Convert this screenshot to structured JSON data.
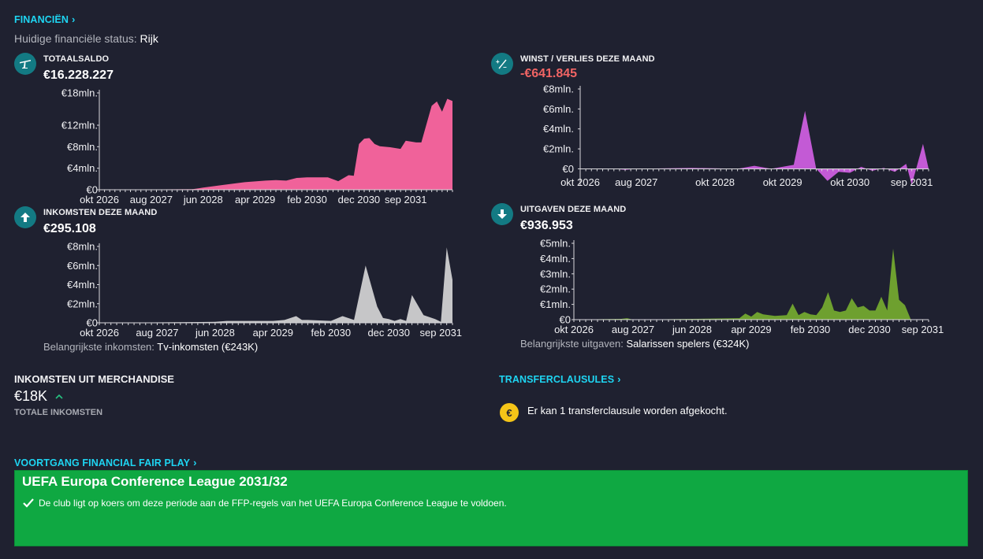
{
  "header": {
    "finances_link": "FINANCIËN",
    "status_label": "Huidige financiële status:",
    "status_value": "Rijk"
  },
  "cards": {
    "balance": {
      "title": "TOTAALSALDO",
      "value": "€16.228.227",
      "icon": "balance-scale-icon"
    },
    "profit": {
      "title": "WINST / VERLIES DEZE MAAND",
      "value": "-€641.845",
      "value_color": "#f16464",
      "icon": "plus-minus-icon"
    },
    "income": {
      "title": "INKOMSTEN DEZE MAAND",
      "value": "€295.108",
      "icon": "arrow-up-icon",
      "note_label": "Belangrijkste inkomsten:",
      "note_value": "Tv-inkomsten (€243K)"
    },
    "expenses": {
      "title": "UITGAVEN DEZE MAAND",
      "value": "€936.953",
      "icon": "arrow-down-icon",
      "note_label": "Belangrijkste uitgaven:",
      "note_value": "Salarissen spelers (€324K)"
    }
  },
  "merchandise": {
    "title": "INKOMSTEN UIT MERCHANDISE",
    "value": "€18K",
    "trend_icon": "chevron-up-icon",
    "subtitle": "TOTALE INKOMSTEN"
  },
  "transfer_clauses": {
    "link": "TRANSFERCLAUSULES",
    "icon": "euro-coin-icon",
    "coin_symbol": "€",
    "message": "Er kan 1 transferclausule worden afgekocht."
  },
  "ffp": {
    "link": "VOORTGANG FINANCIAL FAIR PLAY",
    "title": "UEFA Europa Conference League 2031/32",
    "message": "De club ligt op koers om deze periode aan de FFP-regels van het UEFA Europa Conference League te voldoen.",
    "box_color": "#0fa842"
  },
  "chart_data": [
    {
      "id": "balance",
      "type": "area",
      "color": "#f0629a",
      "ylim": [
        0,
        18
      ],
      "y_ticks": [
        0,
        4,
        8,
        12,
        18
      ],
      "y_tick_labels": [
        "€0",
        "€4mln.",
        "€8mln.",
        "€12mln.",
        "€18mln."
      ],
      "x_tick_labels": [
        "okt 2026",
        "aug 2027",
        "jun 2028",
        "apr 2029",
        "feb 2030",
        "dec 2030",
        "sep 2031"
      ],
      "x_tick_pos": [
        0,
        10,
        20,
        30,
        40,
        50,
        59
      ],
      "x": [
        0,
        18,
        20,
        24,
        28,
        32,
        34,
        36,
        38,
        40,
        42,
        44,
        46,
        48,
        49,
        50,
        51,
        52,
        53,
        54,
        56,
        58,
        59,
        61,
        62,
        64,
        65,
        66,
        67,
        68
      ],
      "y": [
        0,
        0.1,
        0.4,
        0.9,
        1.4,
        1.7,
        1.8,
        1.7,
        2.2,
        2.3,
        2.3,
        2.3,
        1.6,
        2.7,
        2.6,
        8.5,
        9.5,
        9.6,
        8.5,
        8.1,
        7.9,
        7.6,
        9.1,
        8.8,
        8.8,
        15.6,
        16.4,
        14.5,
        16.9,
        16.5
      ],
      "x_max": 68
    },
    {
      "id": "profit",
      "type": "area",
      "color": "#c35ad5",
      "ylim": [
        -1.7,
        8
      ],
      "y_ticks": [
        0,
        2,
        4,
        6,
        8
      ],
      "y_tick_labels": [
        "€0",
        "€2mln.",
        "€4mln.",
        "€6mln.",
        "€8mln."
      ],
      "x_tick_labels": [
        "okt 2026",
        "aug 2027",
        "okt 2028",
        "okt 2029",
        "okt 2030",
        "sep 2031"
      ],
      "x_tick_pos": [
        0,
        10,
        24,
        36,
        48,
        59
      ],
      "x": [
        0,
        6,
        8,
        10,
        20,
        28,
        31,
        32,
        34,
        38,
        40,
        42,
        44,
        46,
        48,
        50,
        52,
        54,
        56,
        58,
        59,
        61,
        62,
        64,
        65,
        66,
        67,
        68
      ],
      "y": [
        0,
        0,
        -0.1,
        0,
        0.1,
        0,
        0.3,
        0.2,
        0,
        0.4,
        5.8,
        0,
        -1.2,
        -0.3,
        -0.4,
        0.2,
        -0.2,
        0.1,
        -0.3,
        0.5,
        -1.6,
        2.5,
        0,
        0,
        0,
        0,
        0,
        0
      ],
      "x_max": 62
    },
    {
      "id": "income",
      "type": "area",
      "color": "#c6c6c8",
      "ylim": [
        0,
        8
      ],
      "y_ticks": [
        0,
        2,
        4,
        6,
        8
      ],
      "y_tick_labels": [
        "€0",
        "€2mln.",
        "€4mln.",
        "€6mln.",
        "€8mln."
      ],
      "x_tick_labels": [
        "okt 2026",
        "aug 2027",
        "jun 2028",
        "apr 2029",
        "feb 2030",
        "dec 2030",
        "sep 2031"
      ],
      "x_tick_pos": [
        0,
        10,
        20,
        30,
        40,
        50,
        59
      ],
      "x": [
        0,
        20,
        22,
        26,
        30,
        32,
        34,
        35,
        36,
        40,
        42,
        44,
        46,
        48,
        49,
        50,
        51,
        52,
        53,
        54,
        56,
        58,
        59,
        60,
        61,
        62,
        64,
        65,
        66,
        67,
        68
      ],
      "y": [
        0,
        0.1,
        0.2,
        0.2,
        0.2,
        0.3,
        0.7,
        0.3,
        0.3,
        0.2,
        0.7,
        0.3,
        6.0,
        1.7,
        0.5,
        0.4,
        0.2,
        0.4,
        0.2,
        2.9,
        0.8,
        0.4,
        0.1,
        7.9,
        4.5,
        2.0,
        2.8,
        3.6,
        0,
        0,
        0
      ],
      "x_max": 61
    },
    {
      "id": "expenses",
      "type": "area",
      "color": "#6ea02f",
      "ylim": [
        0,
        5
      ],
      "y_ticks": [
        0,
        1,
        2,
        3,
        4,
        5
      ],
      "y_tick_labels": [
        "€0",
        "€1mln.",
        "€2mln.",
        "€3mln.",
        "€4mln.",
        "€5mln."
      ],
      "x_tick_labels": [
        "okt 2026",
        "aug 2027",
        "jun 2028",
        "apr 2029",
        "feb 2030",
        "dec 2030",
        "sep 2031"
      ],
      "x_tick_pos": [
        0,
        10,
        20,
        30,
        40,
        50,
        59
      ],
      "x": [
        0,
        8,
        9,
        10,
        20,
        28,
        29,
        30,
        31,
        32,
        33,
        34,
        36,
        37,
        38,
        39,
        40,
        41,
        42,
        43,
        44,
        45,
        46,
        47,
        48,
        49,
        50,
        51,
        52,
        53,
        54,
        55,
        56,
        57,
        58,
        59,
        60
      ],
      "y": [
        0,
        0.05,
        0.1,
        0,
        0.05,
        0.1,
        0.4,
        0.2,
        0.5,
        0.35,
        0.3,
        0.25,
        0.3,
        1.05,
        0.3,
        0.5,
        0.35,
        0.3,
        0.8,
        1.8,
        0.6,
        0.5,
        0.6,
        1.4,
        0.8,
        0.9,
        0.6,
        0.6,
        1.5,
        0.6,
        4.65,
        1.3,
        0.95,
        0,
        0,
        0,
        0
      ],
      "x_max": 60
    }
  ]
}
